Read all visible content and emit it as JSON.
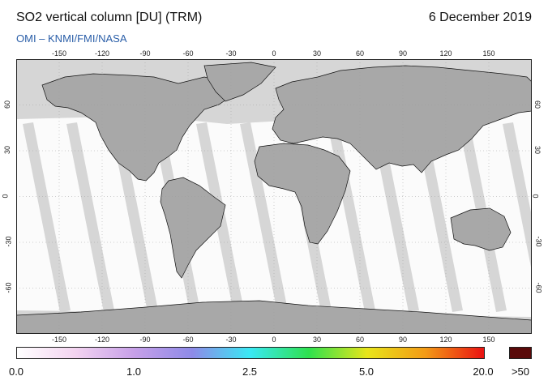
{
  "header": {
    "title": "SO2 vertical column [DU] (TRM)",
    "date": "6 December 2019",
    "credit": "OMI  –  KNMI/FMI/NASA"
  },
  "map": {
    "projection": "plate-carree",
    "lon_range": [
      -180,
      180
    ],
    "lat_range": [
      -90,
      90
    ],
    "lon_ticks": [
      "-150",
      "-120",
      "-90",
      "-60",
      "-30",
      "0",
      "30",
      "60",
      "90",
      "120",
      "150"
    ],
    "lat_ticks": [
      "60",
      "30",
      "0",
      "-30",
      "-60"
    ],
    "colors": {
      "land": "#a8a8a8",
      "no_data": "#d6d6d6",
      "data": "#fbfbfb",
      "coastline": "#111111",
      "grid": "#bdbdbd"
    }
  },
  "colorbar": {
    "labels": [
      "0.0",
      "1.0",
      "2.5",
      "5.0",
      "20.0",
      ">50"
    ],
    "stops": [
      "#ffffff",
      "#f3d3f0",
      "#c7a0e8",
      "#8e8ae8",
      "#39e9f4",
      "#2ee14e",
      "#e8e51a",
      "#f39a16",
      "#ea1212"
    ],
    "over_color": "#5a0a0a"
  }
}
